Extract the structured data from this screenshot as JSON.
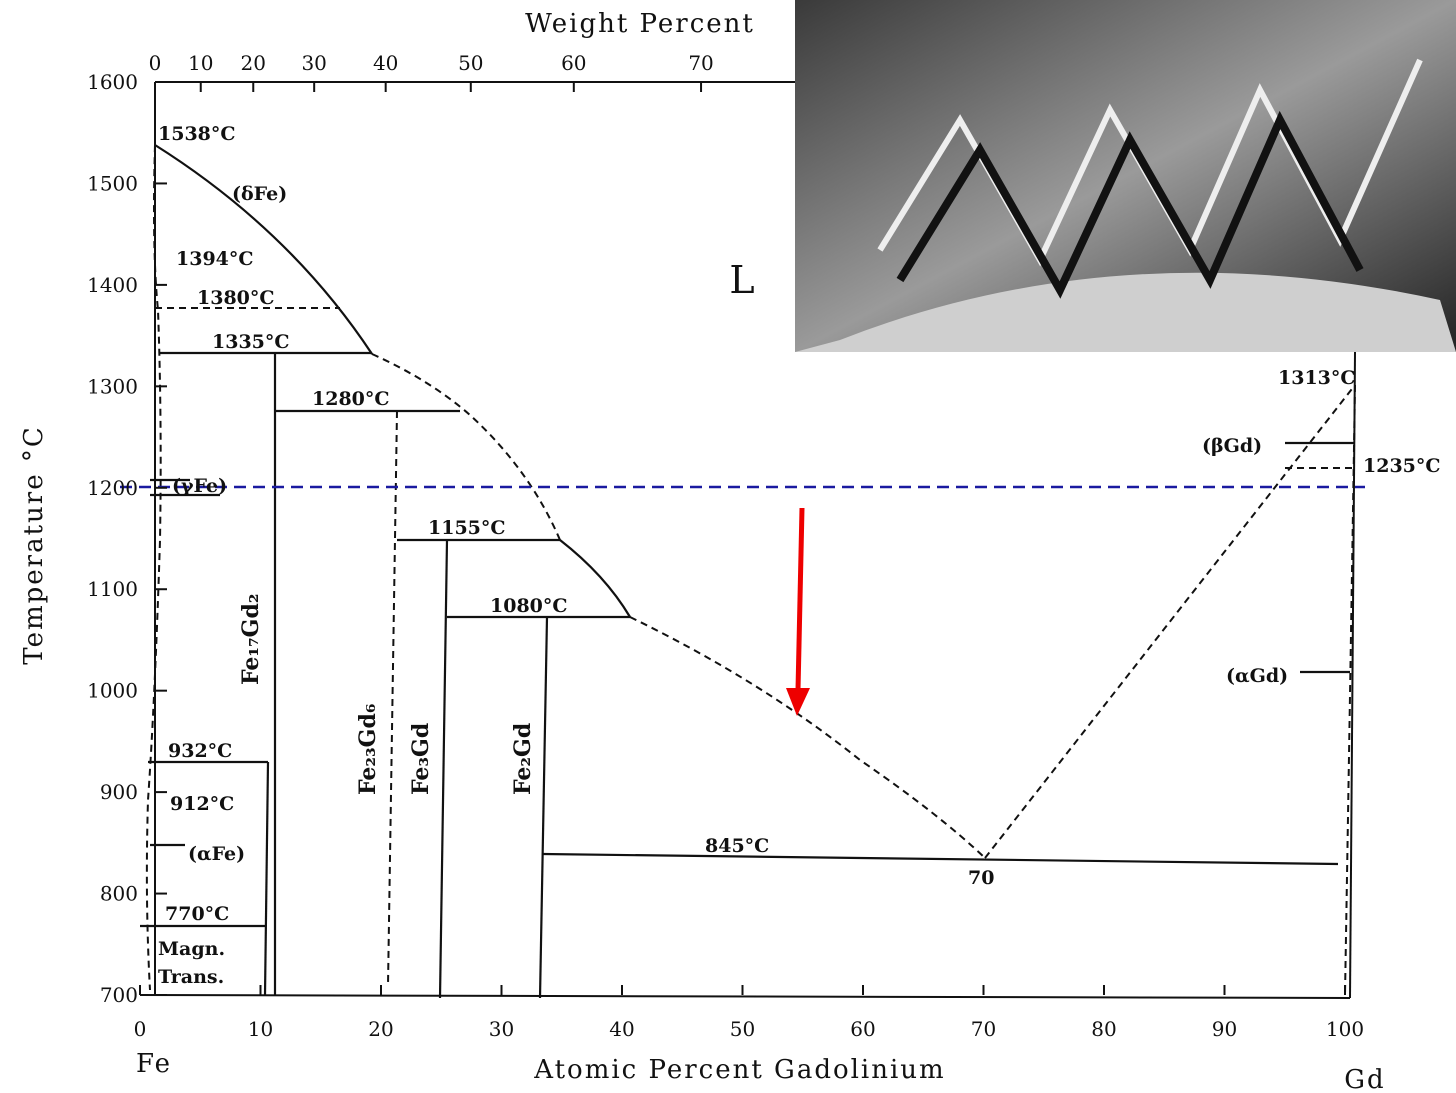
{
  "diagram": {
    "top_axis": {
      "label": "Weight Percent",
      "ticks": [
        0,
        10,
        20,
        30,
        40,
        50,
        60,
        70
      ]
    },
    "x_axis": {
      "label": "Atomic Percent Gadolinium",
      "lim": [
        0,
        100
      ],
      "ticks": [
        0,
        10,
        20,
        30,
        40,
        50,
        60,
        70,
        80,
        90,
        100
      ],
      "left_end": "Fe",
      "right_end": "Gd"
    },
    "y_axis": {
      "label": "Temperature °C",
      "lim": [
        700,
        1600
      ],
      "ticks": [
        700,
        800,
        900,
        1000,
        1100,
        1200,
        1300,
        1400,
        1500,
        1600
      ]
    },
    "region_label": "L",
    "annotations": [
      "1538°C",
      "(δFe)",
      "1394°C",
      "1380°C",
      "1335°C",
      "1280°C",
      "(γFe)",
      "1155°C",
      "1080°C",
      "932°C",
      "912°C",
      "(αFe)",
      "770°C",
      "Magn.",
      "Trans.",
      "845°C",
      "70",
      "1313°C",
      "(βGd)",
      "1235°C",
      "(αGd)"
    ],
    "compounds": [
      "Fe₁₇Gd₂",
      "Fe₂₃Gd₆",
      "Fe₃Gd",
      "Fe₂Gd"
    ]
  }
}
